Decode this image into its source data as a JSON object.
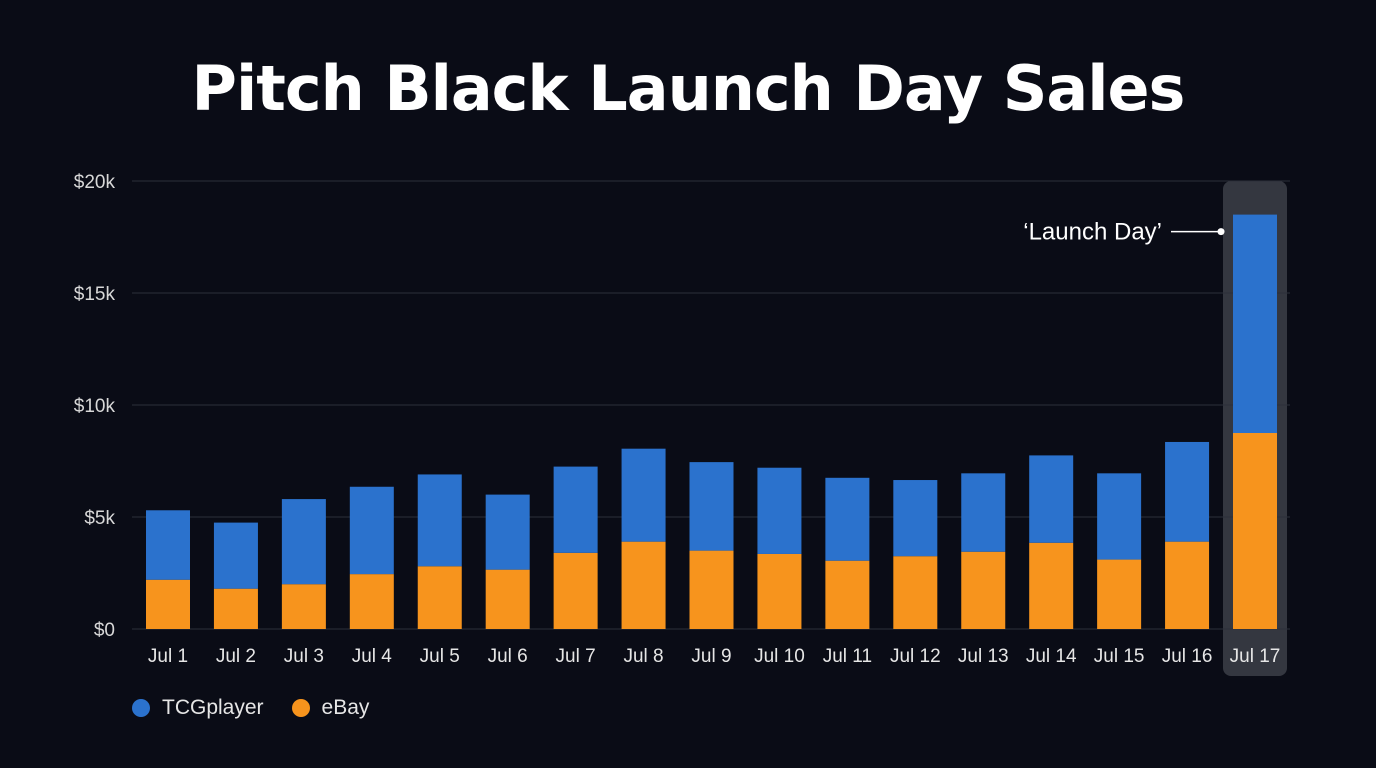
{
  "chart_data": {
    "type": "bar",
    "stacked": true,
    "title": "Pitch Black Launch Day Sales",
    "xlabel": "",
    "ylabel": "",
    "categories": [
      "Jul 1",
      "Jul 2",
      "Jul 3",
      "Jul 4",
      "Jul 5",
      "Jul 6",
      "Jul 7",
      "Jul 8",
      "Jul 9",
      "Jul 10",
      "Jul 11",
      "Jul 12",
      "Jul 13",
      "Jul 14",
      "Jul 15",
      "Jul 16",
      "Jul 17"
    ],
    "series": [
      {
        "name": "eBay",
        "color": "#f7941d",
        "values": [
          2200,
          1800,
          2000,
          2450,
          2800,
          2650,
          3400,
          3900,
          3500,
          3350,
          3050,
          3250,
          3450,
          3850,
          3100,
          3900,
          8750
        ]
      },
      {
        "name": "TCGplayer",
        "color": "#2b72cd",
        "values": [
          3100,
          2950,
          3800,
          3900,
          4100,
          3350,
          3850,
          4150,
          3950,
          3850,
          3700,
          3400,
          3500,
          3900,
          3850,
          4450,
          9750
        ]
      }
    ],
    "ylim": [
      0,
      20000
    ],
    "yticks": [
      0,
      5000,
      10000,
      15000,
      20000
    ],
    "ytick_labels": [
      "$0",
      "$5k",
      "$10k",
      "$15k",
      "$20k"
    ],
    "grid": true,
    "legend_position": "bottom-left",
    "highlight": {
      "category": "Jul 17",
      "annotation": "‘Launch Day’"
    }
  },
  "legend": {
    "items": [
      {
        "label": "TCGplayer",
        "color": "#2b72cd"
      },
      {
        "label": "eBay",
        "color": "#f7941d"
      }
    ]
  }
}
